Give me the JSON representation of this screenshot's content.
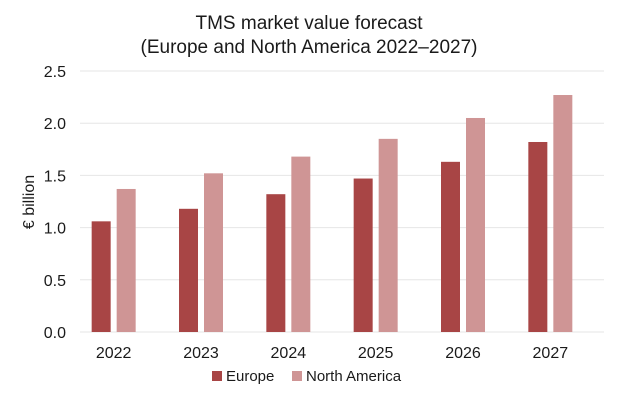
{
  "chart_data": {
    "type": "bar",
    "title_line1": "TMS market value forecast",
    "title_line2": "(Europe and North America 2022–2027)",
    "xlabel": "",
    "ylabel": "€ billion",
    "categories": [
      "2022",
      "2023",
      "2024",
      "2025",
      "2026",
      "2027"
    ],
    "series": [
      {
        "name": "Europe",
        "color": "#a84545",
        "values": [
          1.06,
          1.18,
          1.32,
          1.47,
          1.63,
          1.82
        ]
      },
      {
        "name": "North America",
        "color": "#cf9595",
        "values": [
          1.37,
          1.52,
          1.68,
          1.85,
          2.05,
          2.27
        ]
      }
    ],
    "ylim": [
      0,
      2.5
    ],
    "yticks": [
      "0.0",
      "0.5",
      "1.0",
      "1.5",
      "2.0",
      "2.5"
    ],
    "grid": true,
    "legend_position": "bottom-center"
  }
}
